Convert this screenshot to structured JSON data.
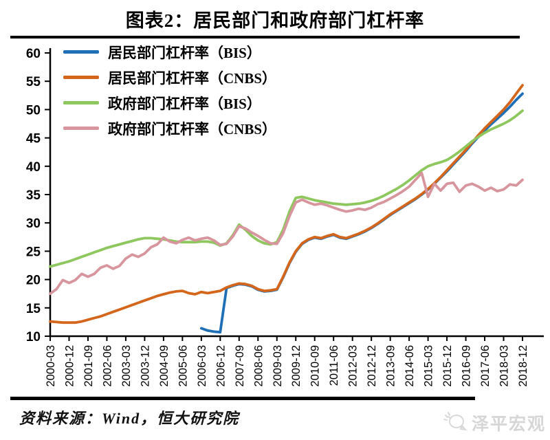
{
  "title": "图表2：居民部门和政府部门杠杆率",
  "footer": {
    "source": "资料来源：Wind，恒大研究院",
    "watermark": "泽平宏观"
  },
  "chart_data": {
    "type": "line",
    "title": "图表2：居民部门和政府部门杠杆率",
    "grid": false,
    "legend_position": "top-left",
    "ylim": [
      10,
      60
    ],
    "y_ticks": [
      10,
      15,
      20,
      25,
      30,
      35,
      40,
      45,
      50,
      55,
      60
    ],
    "x_start": "2000-03",
    "x_end": "2018-12",
    "x_step_months": 3,
    "x_tick_labels": [
      "2000-03",
      "2000-12",
      "2001-09",
      "2002-06",
      "2003-03",
      "2003-12",
      "2004-09",
      "2005-06",
      "2006-03",
      "2006-12",
      "2007-09",
      "2008-06",
      "2009-03",
      "2009-12",
      "2010-09",
      "2011-06",
      "2012-03",
      "2012-12",
      "2013-09",
      "2014-06",
      "2015-03",
      "2015-12",
      "2016-09",
      "2017-06",
      "2018-03",
      "2018-12"
    ],
    "series": [
      {
        "id": "household-bis",
        "name": "居民部门杠杆率（BIS）",
        "color": "#1e6fb5",
        "values": [
          null,
          null,
          null,
          null,
          null,
          null,
          null,
          null,
          null,
          null,
          null,
          null,
          null,
          null,
          null,
          null,
          null,
          null,
          null,
          null,
          null,
          null,
          null,
          null,
          11.4,
          11.0,
          10.8,
          10.7,
          18.5,
          18.9,
          19.2,
          19.1,
          18.8,
          18.2,
          17.9,
          18.0,
          18.2,
          20.4,
          22.9,
          24.9,
          26.3,
          27.0,
          27.4,
          27.2,
          27.6,
          27.9,
          27.4,
          27.2,
          27.6,
          28.0,
          28.5,
          29.1,
          29.8,
          30.6,
          31.4,
          32.1,
          32.8,
          33.5,
          34.2,
          35.0,
          35.9,
          36.9,
          38.0,
          39.1,
          40.3,
          41.5,
          42.7,
          44.0,
          45.2,
          46.3,
          47.4,
          48.4,
          49.4,
          50.5,
          51.7,
          52.8
        ]
      },
      {
        "id": "household-cnbs",
        "name": "居民部门杠杆率（CNBS）",
        "color": "#d4661c",
        "values": [
          12.6,
          12.5,
          12.4,
          12.4,
          12.4,
          12.6,
          12.9,
          13.2,
          13.5,
          13.9,
          14.3,
          14.7,
          15.1,
          15.5,
          15.9,
          16.3,
          16.7,
          17.1,
          17.4,
          17.7,
          17.9,
          18.0,
          17.6,
          17.4,
          17.8,
          17.6,
          17.8,
          18.0,
          18.6,
          19.0,
          19.3,
          19.2,
          18.9,
          18.3,
          18.0,
          18.1,
          18.3,
          20.5,
          23.0,
          25.0,
          26.4,
          27.1,
          27.5,
          27.3,
          27.7,
          28.0,
          27.5,
          27.3,
          27.7,
          28.1,
          28.6,
          29.2,
          29.9,
          30.7,
          31.5,
          32.2,
          32.9,
          33.6,
          34.3,
          35.1,
          36.0,
          37.0,
          38.1,
          39.3,
          40.5,
          41.7,
          42.9,
          44.2,
          45.5,
          46.7,
          47.8,
          48.9,
          50.0,
          51.3,
          52.8,
          54.3
        ]
      },
      {
        "id": "government-bis",
        "name": "政府部门杠杆率（BIS）",
        "color": "#8dc75d",
        "values": [
          22.3,
          22.6,
          22.9,
          23.2,
          23.6,
          24.0,
          24.4,
          24.8,
          25.2,
          25.6,
          25.9,
          26.2,
          26.5,
          26.8,
          27.1,
          27.3,
          27.3,
          27.2,
          27.1,
          26.9,
          26.7,
          26.6,
          26.6,
          26.6,
          26.7,
          26.7,
          26.5,
          26.0,
          26.4,
          27.8,
          29.7,
          28.8,
          27.7,
          26.9,
          26.4,
          26.2,
          26.6,
          28.8,
          32.0,
          34.4,
          34.6,
          34.3,
          34.0,
          33.8,
          33.6,
          33.4,
          33.3,
          33.2,
          33.3,
          33.4,
          33.6,
          33.9,
          34.3,
          34.8,
          35.4,
          36.0,
          36.7,
          37.5,
          38.4,
          39.3,
          40.0,
          40.4,
          40.7,
          41.1,
          41.8,
          42.6,
          43.5,
          44.4,
          45.2,
          45.9,
          46.5,
          47.0,
          47.5,
          48.1,
          48.9,
          49.8
        ]
      },
      {
        "id": "government-cnbs",
        "name": "政府部门杠杆率（CNBS）",
        "color": "#d7959d",
        "values": [
          17.5,
          18.3,
          19.9,
          19.4,
          19.9,
          21.0,
          20.5,
          21.0,
          22.1,
          22.5,
          21.9,
          22.4,
          23.7,
          24.4,
          24.0,
          24.6,
          25.7,
          26.2,
          27.4,
          26.7,
          26.4,
          27.0,
          27.4,
          26.9,
          27.2,
          27.4,
          26.9,
          26.1,
          26.3,
          27.6,
          29.4,
          29.0,
          28.3,
          27.7,
          27.0,
          26.4,
          26.3,
          28.2,
          31.2,
          33.6,
          34.1,
          33.6,
          33.2,
          33.4,
          33.1,
          32.7,
          32.3,
          32.0,
          32.2,
          32.5,
          32.3,
          32.7,
          33.3,
          33.7,
          34.3,
          34.9,
          35.6,
          36.4,
          37.6,
          38.8,
          34.6,
          36.9,
          35.7,
          36.9,
          37.1,
          35.5,
          36.6,
          36.9,
          36.4,
          35.7,
          36.2,
          35.6,
          35.9,
          36.8,
          36.6,
          37.6
        ]
      }
    ]
  }
}
